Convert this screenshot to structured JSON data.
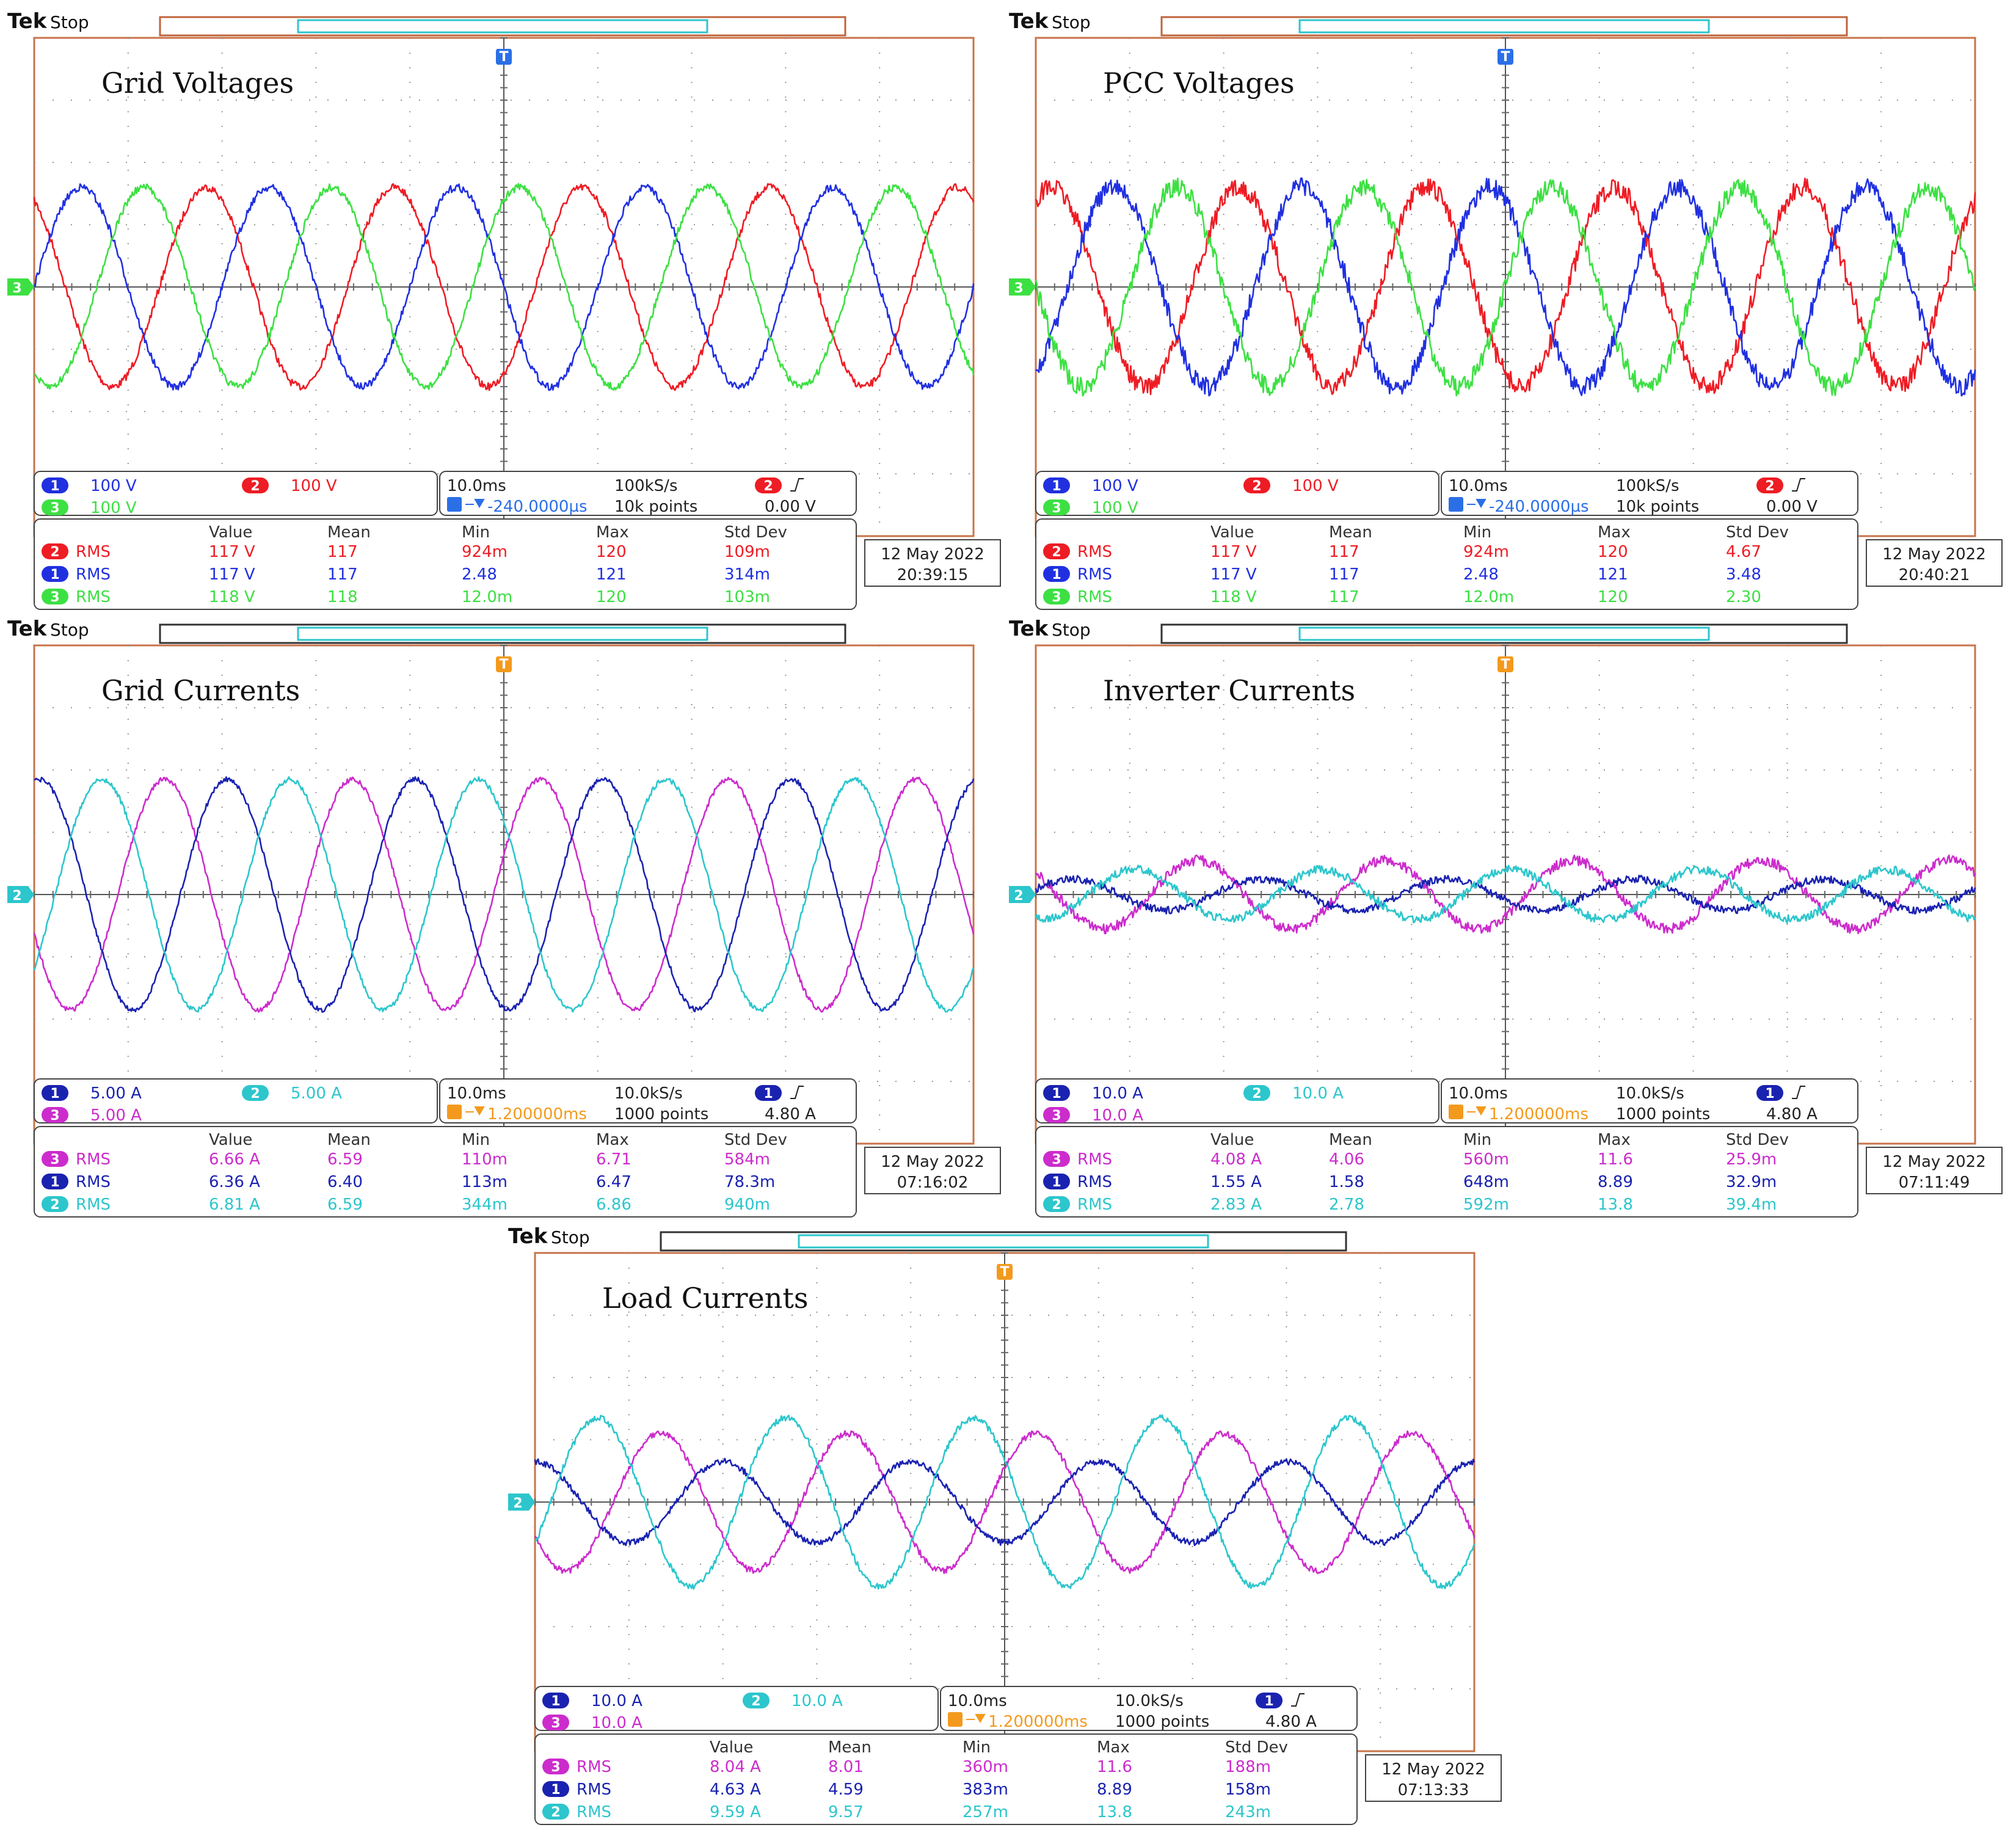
{
  "colors": {
    "red": "#ee1c24",
    "blue": "#2030e0",
    "green": "#3de043",
    "navy": "#1a22b0",
    "cyan": "#2cc6cc",
    "magenta": "#cc2ccc",
    "orange": "#f39a1e",
    "trigger_blue": "#2b6fe6"
  },
  "scopes": [
    {
      "brand": "Tek",
      "status": "Stop",
      "title": "Grid Voltages",
      "ground_marker": "3",
      "trigger_color": "trigger_blue",
      "top_bar_color": "#c0643c",
      "channels": [
        {
          "num": "1",
          "label": "100 V",
          "color": "blue"
        },
        {
          "num": "2",
          "label": "100 V",
          "color": "red"
        },
        {
          "num": "3",
          "label": "100 V",
          "color": "green"
        }
      ],
      "timebase": {
        "timediv": "10.0ms",
        "rate": "100kS/s",
        "delay": "-240.0000µs",
        "points": "10k points",
        "trig_ch": "2",
        "trig_ch_color": "red",
        "trig_level": "0.00 V",
        "delay_color": "trigger_blue"
      },
      "stats_header": [
        "Value",
        "Mean",
        "Min",
        "Max",
        "Std Dev"
      ],
      "stats": [
        {
          "ch": "2",
          "color": "red",
          "name": "RMS",
          "value": "117 V",
          "mean": "117",
          "min": "924m",
          "max": "120",
          "std": "109m"
        },
        {
          "ch": "1",
          "color": "blue",
          "name": "RMS",
          "value": "117 V",
          "mean": "117",
          "min": "2.48",
          "max": "121",
          "std": "314m"
        },
        {
          "ch": "3",
          "color": "green",
          "name": "RMS",
          "value": "118 V",
          "mean": "118",
          "min": "12.0m",
          "max": "120",
          "std": "103m"
        }
      ],
      "date": "12 May  2022",
      "time": "20:39:15",
      "chart_data": {
        "type": "line",
        "title": "Grid Voltages",
        "xlabel": "",
        "ylabel": "",
        "x_divisions": 10,
        "y_divisions": 8,
        "cycles_on_screen": 5,
        "series": [
          {
            "name": "CH2",
            "color": "red",
            "amplitude_div": 1.6,
            "phase_deg": 120,
            "noise": 0.06
          },
          {
            "name": "CH1",
            "color": "blue",
            "amplitude_div": 1.6,
            "phase_deg": 0,
            "noise": 0.06
          },
          {
            "name": "CH3",
            "color": "green",
            "amplitude_div": 1.6,
            "phase_deg": 240,
            "noise": 0.06
          }
        ]
      }
    },
    {
      "brand": "Tek",
      "status": "Stop",
      "title": "PCC Voltages",
      "ground_marker": "3",
      "trigger_color": "trigger_blue",
      "top_bar_color": "#c0643c",
      "channels": [
        {
          "num": "1",
          "label": "100 V",
          "color": "blue"
        },
        {
          "num": "2",
          "label": "100 V",
          "color": "red"
        },
        {
          "num": "3",
          "label": "100 V",
          "color": "green"
        }
      ],
      "timebase": {
        "timediv": "10.0ms",
        "rate": "100kS/s",
        "delay": "-240.0000µs",
        "points": "10k points",
        "trig_ch": "2",
        "trig_ch_color": "red",
        "trig_level": "0.00 V",
        "delay_color": "trigger_blue"
      },
      "stats_header": [
        "Value",
        "Mean",
        "Min",
        "Max",
        "Std Dev"
      ],
      "stats": [
        {
          "ch": "2",
          "color": "red",
          "name": "RMS",
          "value": "117 V",
          "mean": "117",
          "min": "924m",
          "max": "120",
          "std": "4.67"
        },
        {
          "ch": "1",
          "color": "blue",
          "name": "RMS",
          "value": "117 V",
          "mean": "117",
          "min": "2.48",
          "max": "121",
          "std": "3.48"
        },
        {
          "ch": "3",
          "color": "green",
          "name": "RMS",
          "value": "118 V",
          "mean": "117",
          "min": "12.0m",
          "max": "120",
          "std": "2.30"
        }
      ],
      "date": "12 May  2022",
      "time": "20:40:21",
      "chart_data": {
        "type": "line",
        "title": "PCC Voltages",
        "xlabel": "",
        "ylabel": "",
        "x_divisions": 10,
        "y_divisions": 8,
        "cycles_on_screen": 5,
        "series": [
          {
            "name": "CH2",
            "color": "red",
            "amplitude_div": 1.6,
            "phase_deg": 60,
            "noise": 0.15
          },
          {
            "name": "CH1",
            "color": "blue",
            "amplitude_div": 1.6,
            "phase_deg": 300,
            "noise": 0.15
          },
          {
            "name": "CH3",
            "color": "green",
            "amplitude_div": 1.6,
            "phase_deg": 180,
            "noise": 0.15
          }
        ]
      }
    },
    {
      "brand": "Tek",
      "status": "Stop",
      "title": "Grid Currents",
      "ground_marker": "2",
      "trigger_color": "orange",
      "top_bar_color": "#333333",
      "channels": [
        {
          "num": "1",
          "label": "5.00 A",
          "color": "navy"
        },
        {
          "num": "2",
          "label": "5.00 A",
          "color": "cyan"
        },
        {
          "num": "3",
          "label": "5.00 A",
          "color": "magenta"
        }
      ],
      "timebase": {
        "timediv": "10.0ms",
        "rate": "10.0kS/s",
        "delay": "1.200000ms",
        "points": "1000 points",
        "trig_ch": "1",
        "trig_ch_color": "navy",
        "trig_level": "4.80 A",
        "delay_color": "orange"
      },
      "stats_header": [
        "Value",
        "Mean",
        "Min",
        "Max",
        "Std Dev"
      ],
      "stats": [
        {
          "ch": "3",
          "color": "magenta",
          "name": "RMS",
          "value": "6.66 A",
          "mean": "6.59",
          "min": "110m",
          "max": "6.71",
          "std": "584m"
        },
        {
          "ch": "1",
          "color": "navy",
          "name": "RMS",
          "value": "6.36 A",
          "mean": "6.40",
          "min": "113m",
          "max": "6.47",
          "std": "78.3m"
        },
        {
          "ch": "2",
          "color": "cyan",
          "name": "RMS",
          "value": "6.81 A",
          "mean": "6.59",
          "min": "344m",
          "max": "6.86",
          "std": "940m"
        }
      ],
      "date": "12 May  2022",
      "time": "07:16:02",
      "chart_data": {
        "type": "line",
        "title": "Grid Currents",
        "xlabel": "",
        "ylabel": "",
        "x_divisions": 10,
        "y_divisions": 8,
        "cycles_on_screen": 5,
        "series": [
          {
            "name": "CH3",
            "color": "magenta",
            "amplitude_div": 1.85,
            "phase_deg": 200,
            "noise": 0.04
          },
          {
            "name": "CH1",
            "color": "navy",
            "amplitude_div": 1.85,
            "phase_deg": 80,
            "noise": 0.04
          },
          {
            "name": "CH2",
            "color": "cyan",
            "amplitude_div": 1.85,
            "phase_deg": 320,
            "noise": 0.04
          }
        ]
      }
    },
    {
      "brand": "Tek",
      "status": "Stop",
      "title": "Inverter Currents",
      "ground_marker": "2",
      "trigger_color": "orange",
      "top_bar_color": "#333333",
      "channels": [
        {
          "num": "1",
          "label": "10.0 A",
          "color": "navy"
        },
        {
          "num": "2",
          "label": "10.0 A",
          "color": "cyan"
        },
        {
          "num": "3",
          "label": "10.0 A",
          "color": "magenta"
        }
      ],
      "timebase": {
        "timediv": "10.0ms",
        "rate": "10.0kS/s",
        "delay": "1.200000ms",
        "points": "1000 points",
        "trig_ch": "1",
        "trig_ch_color": "navy",
        "trig_level": "4.80 A",
        "delay_color": "orange"
      },
      "stats_header": [
        "Value",
        "Mean",
        "Min",
        "Max",
        "Std Dev"
      ],
      "stats": [
        {
          "ch": "3",
          "color": "magenta",
          "name": "RMS",
          "value": "4.08 A",
          "mean": "4.06",
          "min": "560m",
          "max": "11.6",
          "std": "25.9m"
        },
        {
          "ch": "1",
          "color": "navy",
          "name": "RMS",
          "value": "1.55 A",
          "mean": "1.58",
          "min": "648m",
          "max": "8.89",
          "std": "32.9m"
        },
        {
          "ch": "2",
          "color": "cyan",
          "name": "RMS",
          "value": "2.83 A",
          "mean": "2.78",
          "min": "592m",
          "max": "13.8",
          "std": "39.4m"
        }
      ],
      "date": "12 May  2022",
      "time": "07:11:49",
      "chart_data": {
        "type": "line",
        "title": "Inverter Currents",
        "xlabel": "",
        "ylabel": "",
        "x_divisions": 10,
        "y_divisions": 8,
        "cycles_on_screen": 5,
        "series": [
          {
            "name": "CH3",
            "color": "magenta",
            "amplitude_div": 0.55,
            "phase_deg": 140,
            "noise": 0.08
          },
          {
            "name": "CH1",
            "color": "navy",
            "amplitude_div": 0.25,
            "phase_deg": 20,
            "noise": 0.06
          },
          {
            "name": "CH2",
            "color": "cyan",
            "amplitude_div": 0.4,
            "phase_deg": 260,
            "noise": 0.07
          }
        ]
      }
    },
    {
      "brand": "Tek",
      "status": "Stop",
      "title": "Load Currents",
      "ground_marker": "2",
      "trigger_color": "orange",
      "top_bar_color": "#333333",
      "channels": [
        {
          "num": "1",
          "label": "10.0 A",
          "color": "navy"
        },
        {
          "num": "2",
          "label": "10.0 A",
          "color": "cyan"
        },
        {
          "num": "3",
          "label": "10.0 A",
          "color": "magenta"
        }
      ],
      "timebase": {
        "timediv": "10.0ms",
        "rate": "10.0kS/s",
        "delay": "1.200000ms",
        "points": "1000 points",
        "trig_ch": "1",
        "trig_ch_color": "navy",
        "trig_level": "4.80 A",
        "delay_color": "orange"
      },
      "stats_header": [
        "Value",
        "Mean",
        "Min",
        "Max",
        "Std Dev"
      ],
      "stats": [
        {
          "ch": "3",
          "color": "magenta",
          "name": "RMS",
          "value": "8.04 A",
          "mean": "8.01",
          "min": "360m",
          "max": "11.6",
          "std": "188m"
        },
        {
          "ch": "1",
          "color": "navy",
          "name": "RMS",
          "value": "4.63 A",
          "mean": "4.59",
          "min": "383m",
          "max": "8.89",
          "std": "158m"
        },
        {
          "ch": "2",
          "color": "cyan",
          "name": "RMS",
          "value": "9.59 A",
          "mean": "9.57",
          "min": "257m",
          "max": "13.8",
          "std": "243m"
        }
      ],
      "date": "12 May  2022",
      "time": "07:13:33",
      "chart_data": {
        "type": "line",
        "title": "Load Currents",
        "xlabel": "",
        "ylabel": "",
        "x_divisions": 10,
        "y_divisions": 8,
        "cycles_on_screen": 5,
        "series": [
          {
            "name": "CH3",
            "color": "magenta",
            "amplitude_div": 1.1,
            "phase_deg": 210,
            "noise": 0.05
          },
          {
            "name": "CH1",
            "color": "navy",
            "amplitude_div": 0.65,
            "phase_deg": 90,
            "noise": 0.05
          },
          {
            "name": "CH2",
            "color": "cyan",
            "amplitude_div": 1.35,
            "phase_deg": 330,
            "noise": 0.05
          }
        ]
      }
    }
  ]
}
